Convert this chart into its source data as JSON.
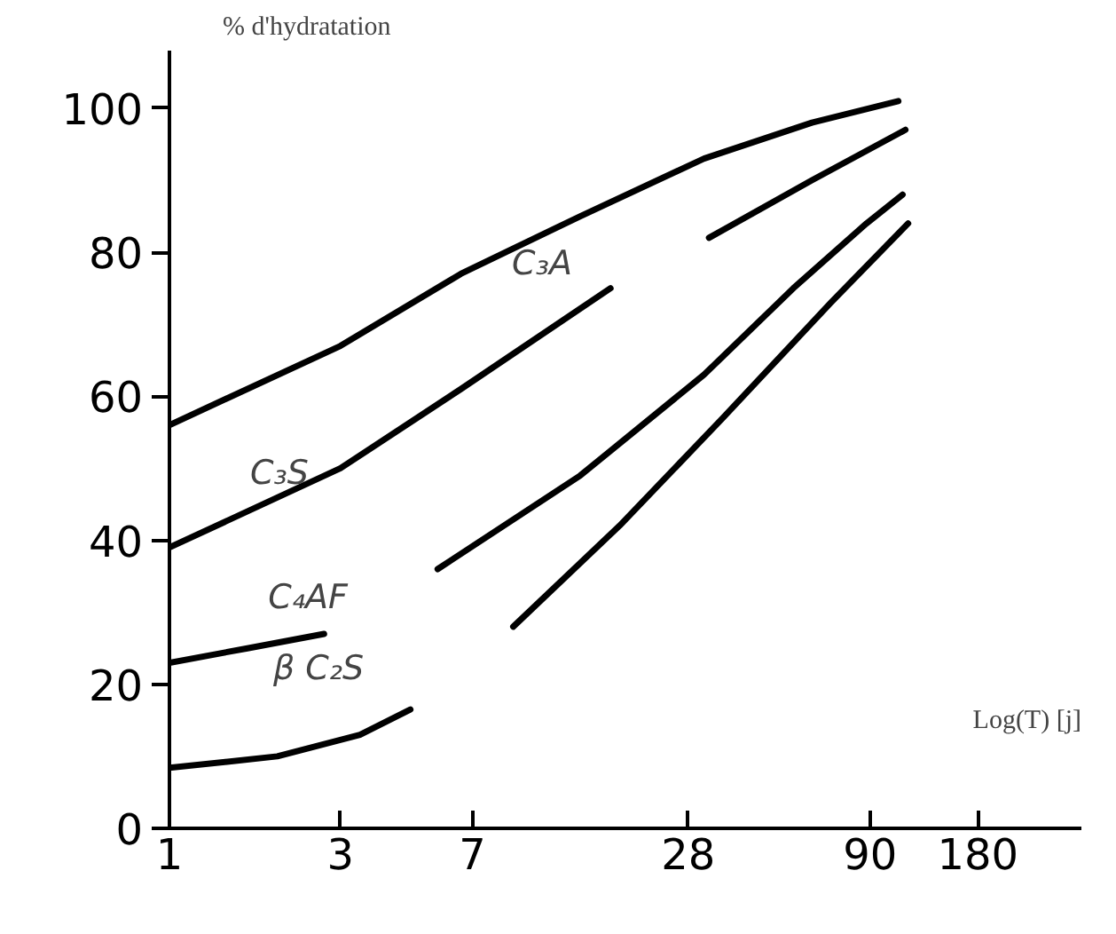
{
  "chart_data": {
    "type": "line",
    "xlabel": "Log(T) [j]",
    "ylabel": "% d'hydratation",
    "log": "x",
    "xlim": [
      1,
      350
    ],
    "ylim": [
      0,
      108
    ],
    "xticks": [
      1,
      3,
      7,
      28,
      90,
      180
    ],
    "yticks": [
      0,
      20,
      40,
      60,
      80,
      100
    ],
    "series": [
      {
        "color": "#000000",
        "x": [
          1,
          3,
          6.5,
          14,
          31,
          62,
          108
        ],
        "values": [
          56,
          67,
          77,
          85,
          93,
          98,
          101
        ]
      },
      {
        "color": "#000000",
        "x": [
          1,
          3,
          6.5,
          17,
          23.5,
          32,
          62,
          113
        ],
        "values": [
          39,
          50,
          61,
          75,
          null,
          82,
          90,
          97
        ]
      },
      {
        "color": "#000000",
        "x": [
          1,
          1.65,
          2.7,
          4,
          5.6,
          14,
          31,
          55,
          88,
          111
        ],
        "values": [
          23,
          25,
          27,
          null,
          36,
          49,
          63,
          75,
          84,
          88
        ]
      },
      {
        "color": "#000000",
        "x": [
          1,
          2,
          3.4,
          4.7,
          6.5,
          9.1,
          18,
          35,
          70,
          115
        ],
        "values": [
          8.4,
          10,
          13,
          16.5,
          null,
          28,
          42,
          57,
          73,
          84
        ]
      }
    ],
    "annotations": [
      "C₃A",
      "C₃S",
      "C₄AF",
      "β C₂S"
    ],
    "line_style": "solid",
    "marker": "none"
  }
}
